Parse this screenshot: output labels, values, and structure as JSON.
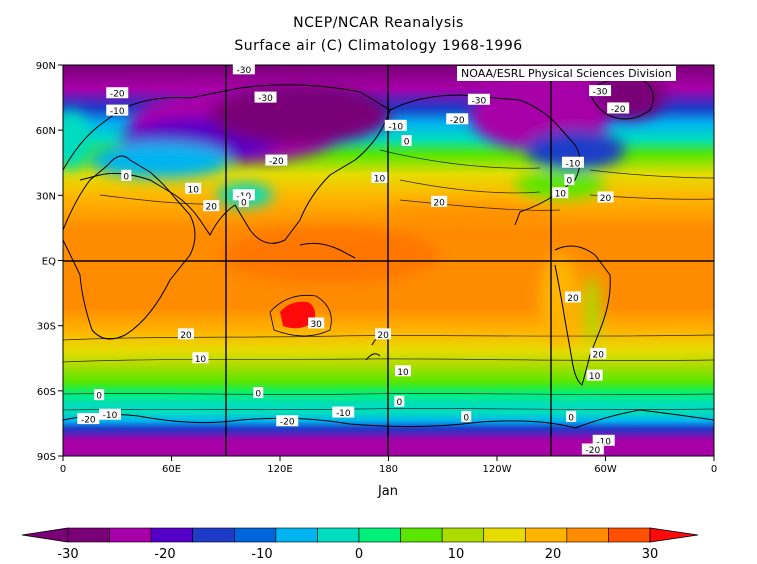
{
  "header": {
    "title": "NCEP/NCAR Reanalysis",
    "subtitle": "Surface air (C) Climatology 1968-1996",
    "credit": "NOAA/ESRL Physical Sciences Division"
  },
  "map": {
    "x_label": "Jan",
    "x_ticks": [
      "0",
      "60E",
      "120E",
      "180",
      "120W",
      "60W",
      "0"
    ],
    "y_ticks": [
      "90N",
      "60N",
      "30N",
      "EQ",
      "30S",
      "60S",
      "90S"
    ]
  },
  "contour_labels": [
    {
      "value": "-20",
      "lon": 30,
      "lat": 77
    },
    {
      "value": "-30",
      "lon": 100,
      "lat": 88
    },
    {
      "value": "-30",
      "lon": 112,
      "lat": 75
    },
    {
      "value": "-30",
      "lon": 230,
      "lat": 74
    },
    {
      "value": "-30",
      "lon": 297,
      "lat": 78
    },
    {
      "value": "-20",
      "lon": 307,
      "lat": 70
    },
    {
      "value": "-10",
      "lon": 30,
      "lat": 69
    },
    {
      "value": "-10",
      "lon": 184,
      "lat": 62
    },
    {
      "value": "-20",
      "lon": 218,
      "lat": 65
    },
    {
      "value": "0",
      "lon": 190,
      "lat": 55
    },
    {
      "value": "-20",
      "lon": 118,
      "lat": 46
    },
    {
      "value": "-10",
      "lon": 282,
      "lat": 45
    },
    {
      "value": "0",
      "lon": 35,
      "lat": 39
    },
    {
      "value": "0",
      "lon": 280,
      "lat": 37
    },
    {
      "value": "10",
      "lon": 175,
      "lat": 38
    },
    {
      "value": "10",
      "lon": 72,
      "lat": 33
    },
    {
      "value": "10",
      "lon": 275,
      "lat": 31
    },
    {
      "value": "-10",
      "lon": 100,
      "lat": 30
    },
    {
      "value": "0",
      "lon": 100,
      "lat": 27
    },
    {
      "value": "20",
      "lon": 82,
      "lat": 25
    },
    {
      "value": "20",
      "lon": 208,
      "lat": 27
    },
    {
      "value": "20",
      "lon": 300,
      "lat": 29
    },
    {
      "value": "20",
      "lon": 282,
      "lat": -17
    },
    {
      "value": "30",
      "lon": 140,
      "lat": -29
    },
    {
      "value": "20",
      "lon": 68,
      "lat": -34
    },
    {
      "value": "20",
      "lon": 177,
      "lat": -34
    },
    {
      "value": "10",
      "lon": 76,
      "lat": -45
    },
    {
      "value": "20",
      "lon": 296,
      "lat": -43
    },
    {
      "value": "10",
      "lon": 188,
      "lat": -51
    },
    {
      "value": "10",
      "lon": 294,
      "lat": -53
    },
    {
      "value": "0",
      "lon": 20,
      "lat": -62
    },
    {
      "value": "0",
      "lon": 108,
      "lat": -61
    },
    {
      "value": "0",
      "lon": 186,
      "lat": -65
    },
    {
      "value": "-10",
      "lon": 26,
      "lat": -71
    },
    {
      "value": "-20",
      "lon": 14,
      "lat": -73
    },
    {
      "value": "-10",
      "lon": 155,
      "lat": -70
    },
    {
      "value": "-20",
      "lon": 124,
      "lat": -74
    },
    {
      "value": "0",
      "lon": 223,
      "lat": -72
    },
    {
      "value": "0",
      "lon": 281,
      "lat": -72
    },
    {
      "value": "-10",
      "lon": 299,
      "lat": -83
    },
    {
      "value": "-20",
      "lon": 293,
      "lat": -87
    }
  ],
  "colorbar": {
    "ticks": [
      "-30",
      "-20",
      "-10",
      "0",
      "10",
      "20",
      "30"
    ],
    "colors": [
      "#7a0078",
      "#a800a8",
      "#5500c8",
      "#1e3cc8",
      "#0064dc",
      "#00b4f0",
      "#00dcbe",
      "#00f078",
      "#5ae600",
      "#aadc00",
      "#e6dc00",
      "#ffb400",
      "#ff8c00",
      "#ff5000"
    ],
    "under_color": "#7a0078",
    "over_color": "#ff0a0a"
  }
}
